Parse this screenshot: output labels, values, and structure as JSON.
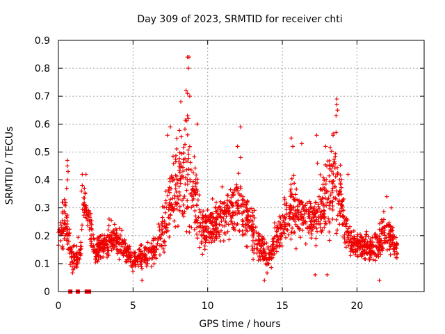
{
  "chart_data": {
    "type": "scatter",
    "title": "Day 309 of 2023, SRMTID for receiver chti",
    "xlabel": "GPS time / hours",
    "ylabel": "SRMTID / TECUs",
    "xlim": [
      0,
      24.5
    ],
    "ylim": [
      0,
      0.9
    ],
    "xticks": [
      0,
      5,
      10,
      15,
      20
    ],
    "yticks": [
      0,
      0.1,
      0.2,
      0.3,
      0.4,
      0.5,
      0.6,
      0.7,
      0.8,
      0.9
    ],
    "ytick_labels": [
      "0",
      "0.1",
      "0.2",
      "0.3",
      "0.4",
      "0.5",
      "0.6",
      "0.7",
      "0.8",
      "0.9"
    ],
    "grid": true,
    "marker": "+",
    "series_color": "#ee0000",
    "envelope_description_points": [
      {
        "x": 0.0,
        "y_base": 0.18,
        "y_spread": 0.06
      },
      {
        "x": 0.5,
        "y_base": 0.28,
        "y_spread": 0.12
      },
      {
        "x": 0.9,
        "y_base": 0.1,
        "y_spread": 0.06
      },
      {
        "x": 1.5,
        "y_base": 0.15,
        "y_spread": 0.06
      },
      {
        "x": 1.7,
        "y_base": 0.33,
        "y_spread": 0.08
      },
      {
        "x": 2.5,
        "y_base": 0.14,
        "y_spread": 0.06
      },
      {
        "x": 3.8,
        "y_base": 0.2,
        "y_spread": 0.08
      },
      {
        "x": 5.0,
        "y_base": 0.11,
        "y_spread": 0.05
      },
      {
        "x": 6.5,
        "y_base": 0.15,
        "y_spread": 0.06
      },
      {
        "x": 7.6,
        "y_base": 0.33,
        "y_spread": 0.18
      },
      {
        "x": 8.6,
        "y_base": 0.45,
        "y_spread": 0.28
      },
      {
        "x": 9.6,
        "y_base": 0.22,
        "y_spread": 0.1
      },
      {
        "x": 11.0,
        "y_base": 0.27,
        "y_spread": 0.1
      },
      {
        "x": 12.0,
        "y_base": 0.32,
        "y_spread": 0.14
      },
      {
        "x": 13.0,
        "y_base": 0.22,
        "y_spread": 0.1
      },
      {
        "x": 14.0,
        "y_base": 0.12,
        "y_spread": 0.06
      },
      {
        "x": 15.6,
        "y_base": 0.3,
        "y_spread": 0.14
      },
      {
        "x": 17.0,
        "y_base": 0.25,
        "y_spread": 0.1
      },
      {
        "x": 18.5,
        "y_base": 0.4,
        "y_spread": 0.22
      },
      {
        "x": 19.5,
        "y_base": 0.18,
        "y_spread": 0.06
      },
      {
        "x": 21.0,
        "y_base": 0.15,
        "y_spread": 0.06
      },
      {
        "x": 22.0,
        "y_base": 0.22,
        "y_spread": 0.1
      },
      {
        "x": 22.7,
        "y_base": 0.15,
        "y_spread": 0.05
      }
    ],
    "notable_points": [
      {
        "x": 8.65,
        "y": 0.84
      },
      {
        "x": 8.75,
        "y": 0.84
      },
      {
        "x": 8.7,
        "y": 0.8
      },
      {
        "x": 8.55,
        "y": 0.72
      },
      {
        "x": 8.65,
        "y": 0.71
      },
      {
        "x": 8.8,
        "y": 0.7
      },
      {
        "x": 8.2,
        "y": 0.68
      },
      {
        "x": 8.65,
        "y": 0.63
      },
      {
        "x": 8.7,
        "y": 0.62
      },
      {
        "x": 9.3,
        "y": 0.6
      },
      {
        "x": 7.5,
        "y": 0.59
      },
      {
        "x": 12.2,
        "y": 0.59
      },
      {
        "x": 12.0,
        "y": 0.52
      },
      {
        "x": 12.2,
        "y": 0.48
      },
      {
        "x": 18.65,
        "y": 0.69
      },
      {
        "x": 18.65,
        "y": 0.67
      },
      {
        "x": 18.7,
        "y": 0.65
      },
      {
        "x": 18.6,
        "y": 0.63
      },
      {
        "x": 18.6,
        "y": 0.57
      },
      {
        "x": 18.4,
        "y": 0.56
      },
      {
        "x": 17.3,
        "y": 0.56
      },
      {
        "x": 15.6,
        "y": 0.55
      },
      {
        "x": 15.7,
        "y": 0.52
      },
      {
        "x": 16.3,
        "y": 0.53
      },
      {
        "x": 17.9,
        "y": 0.52
      },
      {
        "x": 17.35,
        "y": 0.46
      },
      {
        "x": 0.6,
        "y": 0.47
      },
      {
        "x": 0.6,
        "y": 0.45
      },
      {
        "x": 0.65,
        "y": 0.43
      },
      {
        "x": 0.6,
        "y": 0.4
      },
      {
        "x": 0.55,
        "y": 0.37
      },
      {
        "x": 0.4,
        "y": 0.33
      },
      {
        "x": 0.3,
        "y": 0.32
      },
      {
        "x": 1.6,
        "y": 0.42
      },
      {
        "x": 1.85,
        "y": 0.42
      },
      {
        "x": 1.6,
        "y": 0.38
      },
      {
        "x": 1.55,
        "y": 0.36
      },
      {
        "x": 18.0,
        "y": 0.06
      },
      {
        "x": 17.2,
        "y": 0.06
      },
      {
        "x": 21.5,
        "y": 0.04
      },
      {
        "x": 13.8,
        "y": 0.04
      },
      {
        "x": 5.6,
        "y": 0.04
      },
      {
        "x": 22.0,
        "y": 0.34
      },
      {
        "x": 22.3,
        "y": 0.3
      },
      {
        "x": 19.4,
        "y": 0.42
      },
      {
        "x": 7.3,
        "y": 0.56
      }
    ],
    "zero_markers": [
      {
        "x": 0.8,
        "y": 0.0
      },
      {
        "x": 1.3,
        "y": 0.0
      },
      {
        "x": 1.9,
        "y": 0.0
      },
      {
        "x": 2.05,
        "y": 0.0
      }
    ]
  }
}
